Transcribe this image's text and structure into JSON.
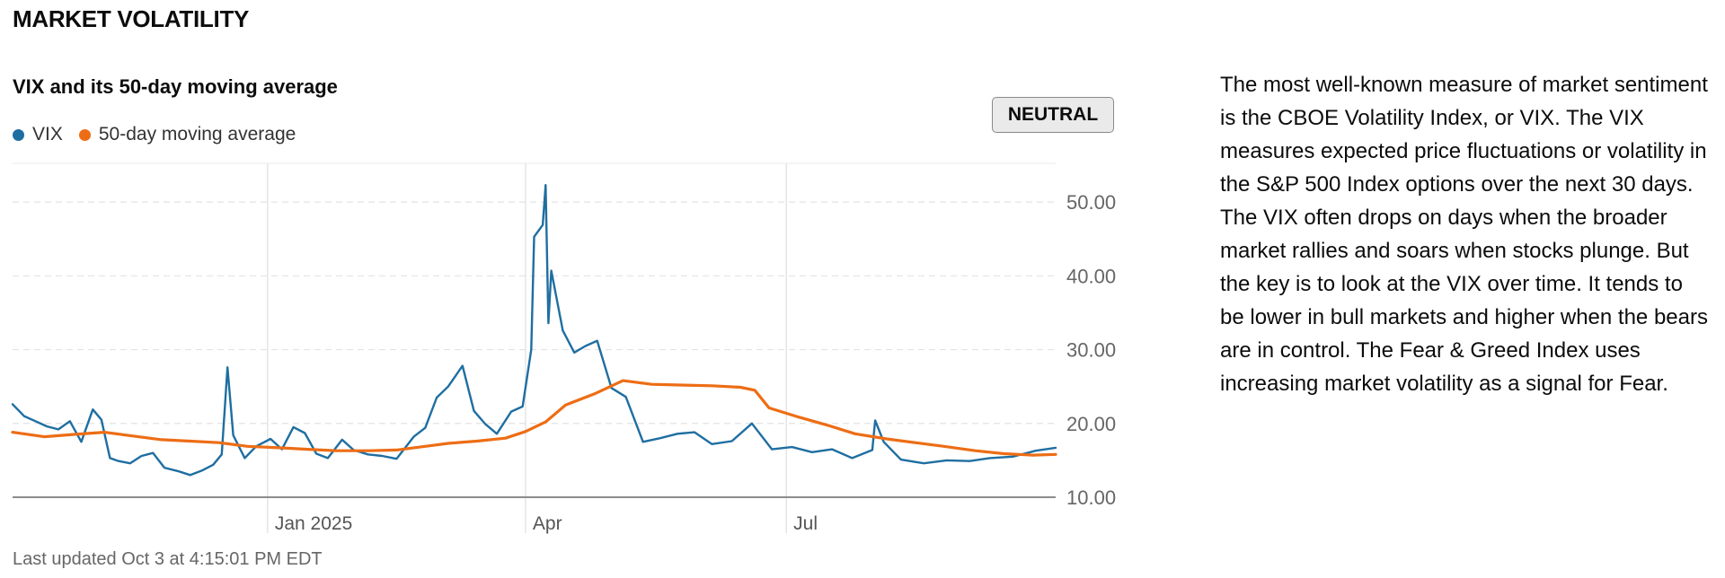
{
  "page": {
    "section_title": "MARKET VOLATILITY",
    "badge": "NEUTRAL",
    "last_updated": "Last updated Oct 3 at 4:15:01 PM EDT",
    "description": "The most well-known measure of market sentiment is the CBOE Volatility Index, or VIX. The VIX measures expected price fluctuations or volatility in the S&P 500 Index options over the next 30 days. The VIX often drops on days when the broader market rallies and soars when stocks plunge. But the key is to look at the VIX over time. It tends to be lower in bull markets and higher when the bears are in control. The Fear & Greed Index uses increasing market volatility as a signal for Fear."
  },
  "chart_data": {
    "type": "line",
    "title": "VIX and its 50-day moving average",
    "x_axis_labels": [
      "Jan 2025",
      "Apr",
      "Jul"
    ],
    "x_axis_label_dates": [
      "2025-01-01",
      "2025-04-01",
      "2025-07-01"
    ],
    "x_range": [
      "2024-10-04",
      "2025-10-03"
    ],
    "y_ticks": [
      10,
      20,
      30,
      40,
      50
    ],
    "y_tick_labels": [
      "10.00",
      "20.00",
      "30.00",
      "40.00",
      "50.00"
    ],
    "ylim": [
      10,
      55
    ],
    "grid": true,
    "legend_position": "top-left",
    "series": [
      {
        "name": "VIX",
        "color": "#1f6ea1",
        "x": [
          "2024-10-04",
          "2024-10-08",
          "2024-10-12",
          "2024-10-16",
          "2024-10-20",
          "2024-10-24",
          "2024-10-28",
          "2024-11-01",
          "2024-11-04",
          "2024-11-07",
          "2024-11-10",
          "2024-11-14",
          "2024-11-18",
          "2024-11-22",
          "2024-11-26",
          "2024-12-01",
          "2024-12-05",
          "2024-12-09",
          "2024-12-13",
          "2024-12-16",
          "2024-12-18",
          "2024-12-20",
          "2024-12-24",
          "2024-12-28",
          "2025-01-02",
          "2025-01-06",
          "2025-01-10",
          "2025-01-14",
          "2025-01-18",
          "2025-01-22",
          "2025-01-27",
          "2025-01-31",
          "2025-02-05",
          "2025-02-10",
          "2025-02-15",
          "2025-02-21",
          "2025-02-25",
          "2025-03-01",
          "2025-03-05",
          "2025-03-10",
          "2025-03-14",
          "2025-03-18",
          "2025-03-22",
          "2025-03-27",
          "2025-03-31",
          "2025-04-03",
          "2025-04-04",
          "2025-04-07",
          "2025-04-08",
          "2025-04-09",
          "2025-04-10",
          "2025-04-14",
          "2025-04-18",
          "2025-04-22",
          "2025-04-26",
          "2025-05-01",
          "2025-05-06",
          "2025-05-12",
          "2025-05-18",
          "2025-05-24",
          "2025-05-30",
          "2025-06-05",
          "2025-06-12",
          "2025-06-19",
          "2025-06-26",
          "2025-07-03",
          "2025-07-10",
          "2025-07-17",
          "2025-07-24",
          "2025-07-31",
          "2025-08-01",
          "2025-08-04",
          "2025-08-10",
          "2025-08-18",
          "2025-08-26",
          "2025-09-03",
          "2025-09-10",
          "2025-09-18",
          "2025-09-26",
          "2025-10-03"
        ],
        "values": [
          22.6,
          21.0,
          20.3,
          19.6,
          19.2,
          20.3,
          17.5,
          21.9,
          20.5,
          15.3,
          14.9,
          14.6,
          15.6,
          16.0,
          14.0,
          13.5,
          13.0,
          13.6,
          14.4,
          15.8,
          27.6,
          18.4,
          15.3,
          16.9,
          17.9,
          16.5,
          19.5,
          18.7,
          15.9,
          15.3,
          17.8,
          16.4,
          15.8,
          15.6,
          15.2,
          18.2,
          19.4,
          23.5,
          25.0,
          27.8,
          21.7,
          19.9,
          18.6,
          21.6,
          22.3,
          30.0,
          45.3,
          46.9,
          52.3,
          33.6,
          40.7,
          32.6,
          29.6,
          30.5,
          31.2,
          24.8,
          23.6,
          17.5,
          18.0,
          18.6,
          18.8,
          17.2,
          17.6,
          20.0,
          16.5,
          16.8,
          16.1,
          16.5,
          15.3,
          16.4,
          20.4,
          17.5,
          15.1,
          14.6,
          15.0,
          14.9,
          15.3,
          15.5,
          16.3,
          16.7
        ]
      },
      {
        "name": "50-day moving average",
        "color": "#ed6d15",
        "x": [
          "2024-10-04",
          "2024-10-15",
          "2024-10-25",
          "2024-11-05",
          "2024-11-15",
          "2024-11-25",
          "2024-12-05",
          "2024-12-15",
          "2024-12-25",
          "2025-01-05",
          "2025-01-15",
          "2025-01-25",
          "2025-02-05",
          "2025-02-15",
          "2025-02-25",
          "2025-03-05",
          "2025-03-15",
          "2025-03-25",
          "2025-04-01",
          "2025-04-08",
          "2025-04-15",
          "2025-04-25",
          "2025-05-05",
          "2025-05-15",
          "2025-05-25",
          "2025-06-05",
          "2025-06-15",
          "2025-06-20",
          "2025-06-25",
          "2025-07-05",
          "2025-07-15",
          "2025-07-25",
          "2025-08-05",
          "2025-08-15",
          "2025-08-25",
          "2025-09-05",
          "2025-09-15",
          "2025-09-25",
          "2025-10-03"
        ],
        "values": [
          18.8,
          18.2,
          18.5,
          18.8,
          18.3,
          17.8,
          17.6,
          17.4,
          16.9,
          16.7,
          16.5,
          16.3,
          16.3,
          16.4,
          16.9,
          17.3,
          17.6,
          18.0,
          18.9,
          20.2,
          22.5,
          24.0,
          25.8,
          25.3,
          25.2,
          25.1,
          24.9,
          24.5,
          22.1,
          20.9,
          19.8,
          18.6,
          17.9,
          17.4,
          16.9,
          16.3,
          15.9,
          15.7,
          15.8
        ]
      }
    ]
  }
}
